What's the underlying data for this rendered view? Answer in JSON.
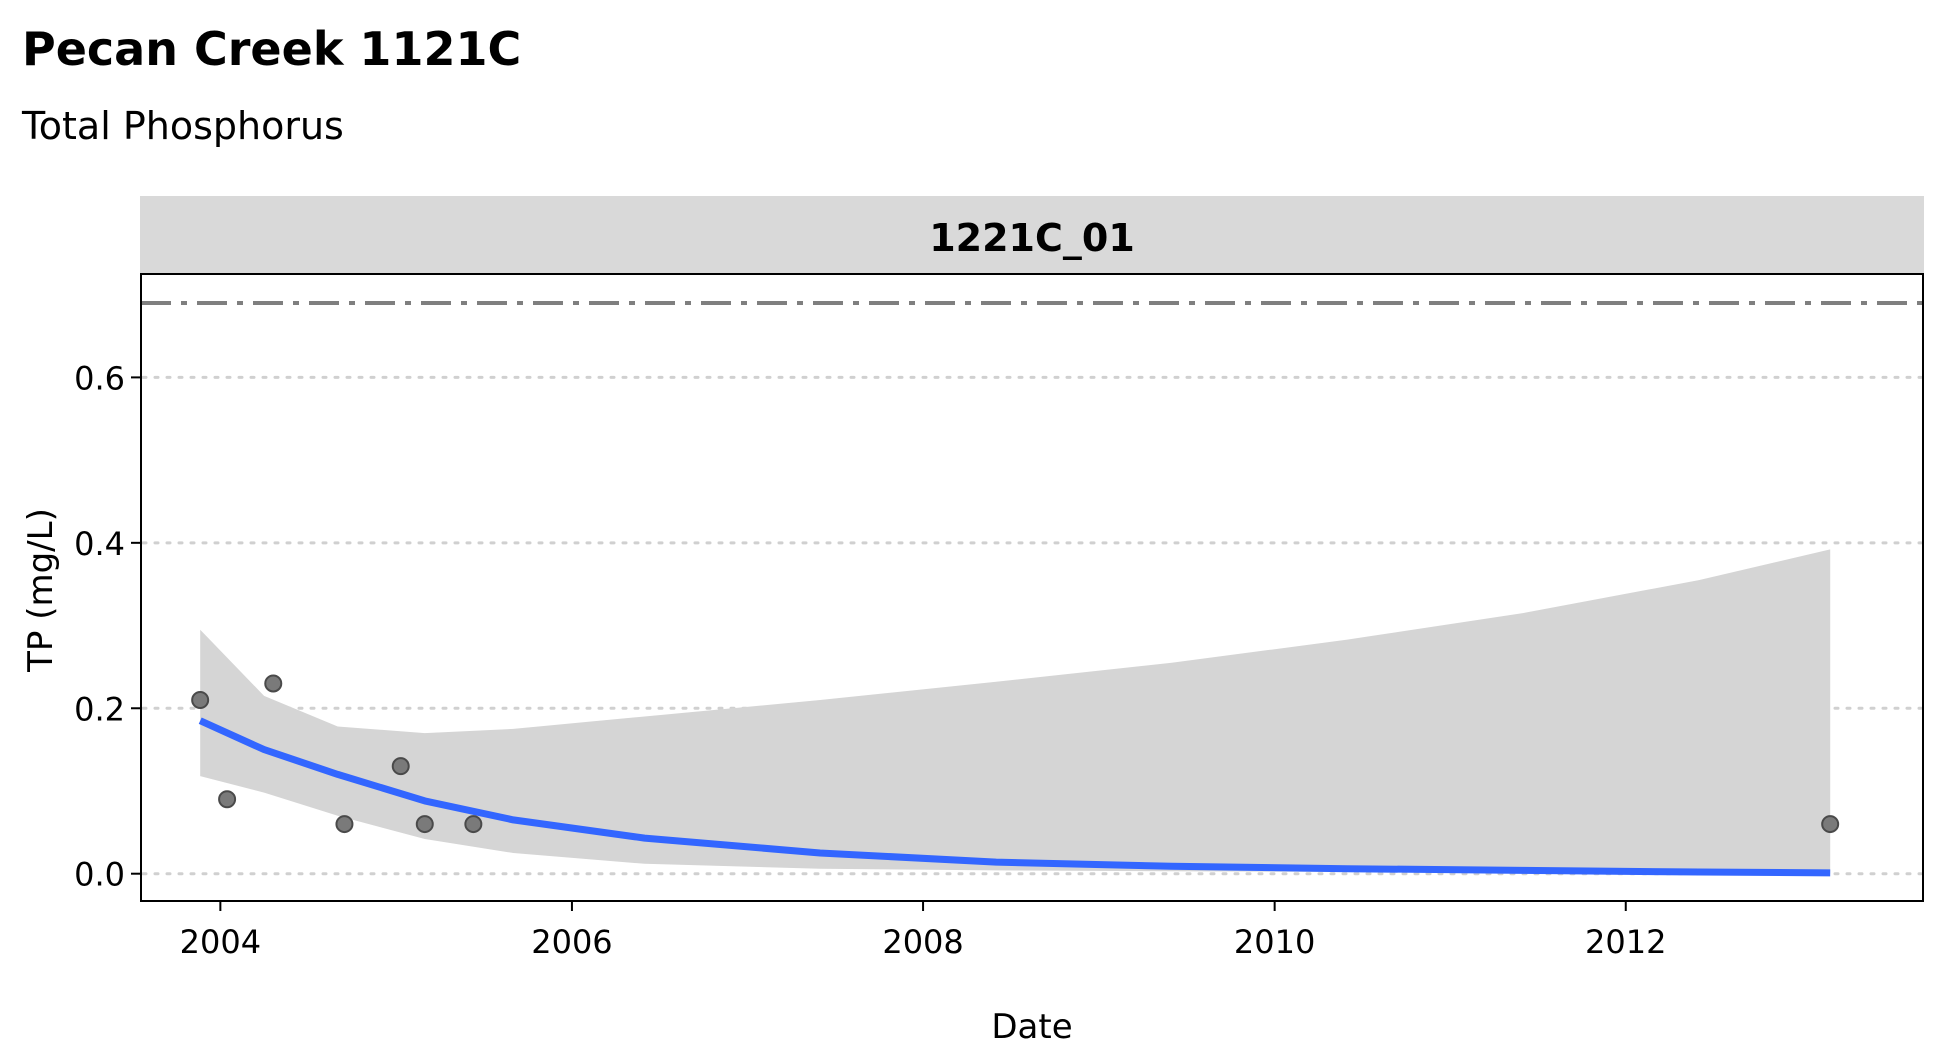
{
  "chart_data": {
    "type": "scatter",
    "title": "Pecan Creek 1121C",
    "subtitle": "Total Phosphorus",
    "facet_label": "1221C_01",
    "xlabel": "Date",
    "ylabel": "TP (mg/L)",
    "x_ticks": [
      "2004",
      "2006",
      "2008",
      "2010",
      "2012"
    ],
    "y_ticks": [
      "0.0",
      "0.2",
      "0.4",
      "0.6"
    ],
    "xlim": [
      "2003-07-20",
      "2013-09-10"
    ],
    "ylim": [
      -0.033,
      0.725
    ],
    "grid": "horizontal dotted",
    "points": [
      {
        "x": "2003-11-20",
        "y": 0.21
      },
      {
        "x": "2004-01-15",
        "y": 0.09
      },
      {
        "x": "2004-04-20",
        "y": 0.23
      },
      {
        "x": "2004-09-15",
        "y": 0.06
      },
      {
        "x": "2005-01-10",
        "y": 0.13
      },
      {
        "x": "2005-03-01",
        "y": 0.06
      },
      {
        "x": "2005-06-10",
        "y": 0.06
      },
      {
        "x": "2013-03-01",
        "y": 0.06
      }
    ],
    "trend": {
      "x": [
        "2003-11-20",
        "2004-04-01",
        "2004-09-01",
        "2005-03-01",
        "2005-09-01",
        "2006-06-01",
        "2007-06-01",
        "2008-06-01",
        "2009-06-01",
        "2010-06-01",
        "2011-06-01",
        "2012-06-01",
        "2013-03-01"
      ],
      "y": [
        0.185,
        0.15,
        0.12,
        0.088,
        0.065,
        0.043,
        0.025,
        0.014,
        0.009,
        0.006,
        0.004,
        0.002,
        0.001
      ],
      "ci_upper": [
        0.295,
        0.215,
        0.178,
        0.17,
        0.175,
        0.19,
        0.21,
        0.232,
        0.255,
        0.283,
        0.315,
        0.355,
        0.392
      ],
      "ci_lower": [
        0.118,
        0.098,
        0.07,
        0.042,
        0.025,
        0.012,
        0.006,
        0.004,
        0.003,
        0.002,
        0.001,
        0.001,
        0.0
      ],
      "color": "#3366FF",
      "ci_color": "#D5D5D5"
    },
    "reference_line": {
      "y": 0.69,
      "style": "dash-dot",
      "color": "#7F7F7F"
    },
    "point_color": "#7A7A7A"
  }
}
